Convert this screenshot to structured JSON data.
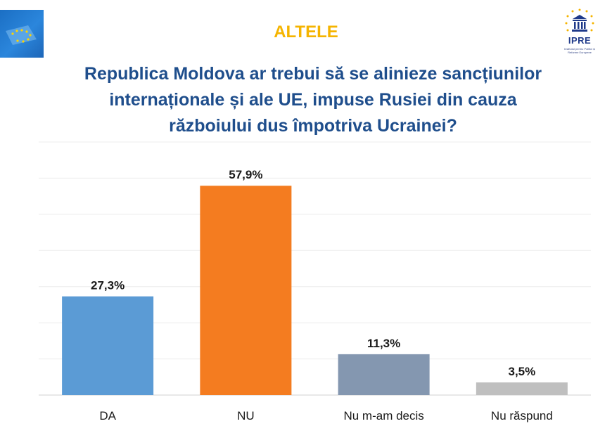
{
  "section_label": "ALTELE",
  "question_lines": [
    "Republica Moldova ar trebui să se alinieze sancțiunilor",
    "internaționale și ale UE, impuse Rusiei din cauza",
    "războiului dus împotriva Ucrainei?"
  ],
  "logo_right": {
    "name": "IPRE",
    "subtitle": "Institutul pentru Politici și Reforme Europene"
  },
  "colors": {
    "title": "#1f4e8c",
    "section_label": "#f5b400",
    "bar_da": "#5b9bd5",
    "bar_nu": "#f47c20",
    "bar_nedecis": "#8497b0",
    "bar_nuraspund": "#bfbfbf"
  },
  "chart_data": {
    "type": "bar",
    "categories": [
      "DA",
      "NU",
      "Nu m-am decis",
      "Nu răspund"
    ],
    "values": [
      27.3,
      57.9,
      11.3,
      3.5
    ],
    "value_labels": [
      "27,3%",
      "57,9%",
      "11,3%",
      "3,5%"
    ],
    "colors": [
      "#5b9bd5",
      "#f47c20",
      "#8497b0",
      "#bfbfbf"
    ],
    "ylim": [
      0,
      70
    ],
    "grid": true,
    "legend": "none",
    "title": "Republica Moldova ar trebui să se alinieze sancțiunilor internaționale și ale UE, impuse Rusiei din cauza războiului dus împotriva Ucrainei?",
    "xlabel": "",
    "ylabel": ""
  }
}
